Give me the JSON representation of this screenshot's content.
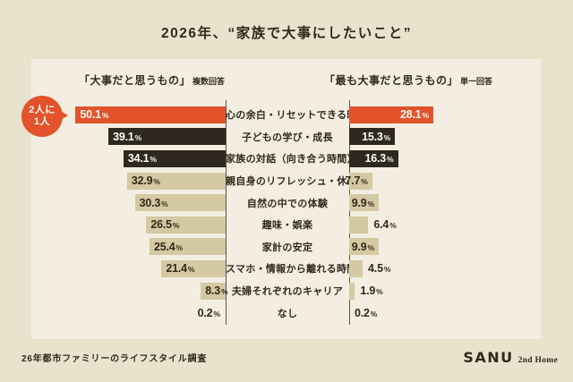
{
  "title": "2026年、“家族で大事にしたいこと”",
  "badge": {
    "line1": "2人に",
    "line2": "1人"
  },
  "chart_data": {
    "type": "bar",
    "layout": "bidirectional-horizontal",
    "left_header": {
      "label": "「大事だと思うもの」",
      "note": "複数回答"
    },
    "right_header": {
      "label": "「最も大事だと思うもの」",
      "note": "単一回答"
    },
    "unit": "%",
    "categories": [
      "心の余白・リセットできる時間",
      "子どもの学び・成長",
      "家族の対話（向き合う時間）",
      "親自身のリフレッシュ・休息",
      "自然の中での体験",
      "趣味・娯楽",
      "家計の安定",
      "スマホ・情報から離れる時間",
      "夫婦それぞれのキャリア",
      "なし"
    ],
    "series": [
      {
        "name": "大事だと思うもの（複数回答）",
        "values": [
          50.1,
          39.1,
          34.1,
          32.9,
          30.3,
          26.5,
          25.4,
          21.4,
          8.3,
          0.2
        ]
      },
      {
        "name": "最も大事だと思うもの（単一回答）",
        "values": [
          28.1,
          15.3,
          16.3,
          7.7,
          9.9,
          6.4,
          9.9,
          4.5,
          1.9,
          0.2
        ]
      }
    ],
    "row_emphasis": [
      "accent",
      "dark",
      "dark",
      "base",
      "base",
      "base",
      "base",
      "base",
      "base",
      "base"
    ],
    "axis": {
      "value_min": 0,
      "value_max": 52
    }
  },
  "footer": {
    "note": "26年都市ファミリーのライフスタイル調査",
    "logo_main": "SANU",
    "logo_sub": "2nd Home"
  },
  "colors": {
    "accent": "#E2522B",
    "dark": "#2E281E",
    "base": "#D4C9A2",
    "panel": "#F3EEE1",
    "background": "#E9E2CD",
    "text": "#32291A",
    "bar_text_light": "#FDFBF4",
    "line": "#5A544B"
  }
}
